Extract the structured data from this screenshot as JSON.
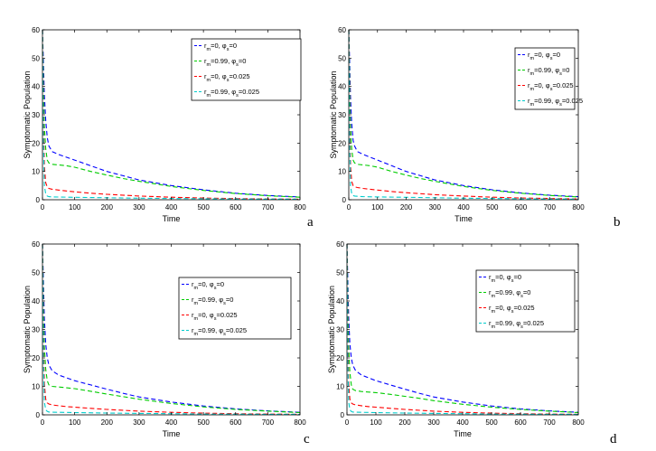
{
  "chart_data": [
    {
      "panel": "a",
      "type": "line",
      "xlabel": "Time",
      "ylabel": "Symptomatic Population",
      "xlim": [
        0,
        800
      ],
      "ylim": [
        0,
        60
      ],
      "xticks": [
        0,
        100,
        200,
        300,
        400,
        500,
        600,
        700,
        800
      ],
      "yticks": [
        0,
        10,
        20,
        30,
        40,
        50,
        60
      ],
      "legend_position": "top-right",
      "series": [
        {
          "name": "r_m=0, φ_s=0",
          "legend": [
            "r",
            "m",
            "=0, φ",
            "s",
            "=0"
          ],
          "color": "#0000ff",
          "x": [
            0,
            3,
            6,
            10,
            15,
            20,
            30,
            50,
            75,
            100,
            150,
            200,
            250,
            300,
            400,
            500,
            600,
            700,
            800
          ],
          "y": [
            60,
            48,
            37,
            28,
            22,
            19,
            17,
            16,
            15,
            14,
            12,
            10,
            8.5,
            7,
            5,
            3.5,
            2.3,
            1.5,
            1
          ]
        },
        {
          "name": "r_m=0.99, φ_s=0",
          "legend": [
            "r",
            "m",
            "=0.99, φ",
            "s",
            "=0"
          ],
          "color": "#00cc00",
          "x": [
            0,
            3,
            6,
            10,
            15,
            20,
            30,
            50,
            75,
            100,
            150,
            200,
            250,
            300,
            400,
            500,
            600,
            700,
            800
          ],
          "y": [
            60,
            40,
            26,
            18,
            14,
            13,
            12.5,
            12.3,
            12,
            11.5,
            10,
            8.7,
            7.5,
            6.5,
            4.7,
            3.3,
            2.2,
            1.4,
            0.9
          ]
        },
        {
          "name": "r_m=0, φ_s=0.025",
          "legend": [
            "r",
            "m",
            "=0, φ",
            "s",
            "=0.025"
          ],
          "color": "#ff0000",
          "x": [
            0,
            3,
            6,
            10,
            15,
            20,
            30,
            50,
            75,
            100,
            150,
            200,
            300,
            400,
            500,
            600,
            700,
            800
          ],
          "y": [
            60,
            30,
            12,
            6,
            4.5,
            4,
            3.7,
            3.4,
            3.1,
            2.8,
            2.3,
            1.9,
            1.3,
            0.9,
            0.6,
            0.4,
            0.3,
            0.2
          ]
        },
        {
          "name": "r_m=0.99, φ_s=0.025",
          "legend": [
            "r",
            "m",
            "=0.99, φ",
            "s",
            "=0.025"
          ],
          "color": "#00cccc",
          "x": [
            0,
            3,
            6,
            10,
            15,
            20,
            30,
            50,
            100,
            200,
            300,
            400,
            500,
            600,
            700,
            800
          ],
          "y": [
            60,
            20,
            5,
            2,
            1.3,
            1.1,
            1,
            0.95,
            0.85,
            0.7,
            0.55,
            0.45,
            0.35,
            0.28,
            0.22,
            0.18
          ]
        }
      ]
    },
    {
      "panel": "b",
      "type": "line",
      "xlabel": "Time",
      "ylabel": "Symptomatic Population",
      "xlim": [
        0,
        800
      ],
      "ylim": [
        0,
        60
      ],
      "xticks": [
        0,
        100,
        200,
        300,
        400,
        500,
        600,
        700,
        800
      ],
      "yticks": [
        0,
        10,
        20,
        30,
        40,
        50,
        60
      ],
      "legend_position": "top-right",
      "series": [
        {
          "name": "r_m=0, φ_s=0",
          "legend": [
            "r",
            "m",
            "=0, φ",
            "s",
            "=0"
          ],
          "color": "#0000ff",
          "x": [
            0,
            3,
            6,
            10,
            15,
            20,
            30,
            50,
            75,
            100,
            150,
            200,
            250,
            300,
            400,
            500,
            600,
            700,
            800
          ],
          "y": [
            60,
            48,
            36,
            27,
            21,
            19,
            17,
            16,
            15,
            14,
            12,
            10,
            8.5,
            7,
            5,
            3.5,
            2.4,
            1.6,
            1.1
          ]
        },
        {
          "name": "r_m=0.99, φ_s=0",
          "legend": [
            "r",
            "m",
            "=0.99, φ",
            "s",
            "=0"
          ],
          "color": "#00cc00",
          "x": [
            0,
            3,
            6,
            10,
            15,
            20,
            30,
            50,
            75,
            100,
            150,
            200,
            250,
            300,
            400,
            500,
            600,
            700,
            800
          ],
          "y": [
            60,
            40,
            26,
            18,
            14,
            13,
            12.5,
            12.3,
            12,
            11.5,
            10,
            8.7,
            7.5,
            6.5,
            4.7,
            3.3,
            2.3,
            1.5,
            1
          ]
        },
        {
          "name": "r_m=0, φ_s=0.025",
          "legend": [
            "r",
            "m",
            "=0, φ",
            "s",
            "=0.025"
          ],
          "color": "#ff0000",
          "x": [
            0,
            3,
            6,
            10,
            15,
            20,
            30,
            50,
            75,
            100,
            150,
            200,
            300,
            400,
            500,
            600,
            700,
            800
          ],
          "y": [
            60,
            30,
            12,
            6.5,
            5,
            4.6,
            4.3,
            4,
            3.7,
            3.4,
            2.9,
            2.5,
            1.8,
            1.3,
            0.9,
            0.6,
            0.45,
            0.3
          ]
        },
        {
          "name": "r_m=0.99, φ_s=0.025",
          "legend": [
            "r",
            "m",
            "=0.99, φ",
            "s",
            "=0.025"
          ],
          "color": "#00cccc",
          "x": [
            0,
            3,
            6,
            10,
            15,
            20,
            30,
            50,
            100,
            200,
            300,
            400,
            500,
            600,
            700,
            800
          ],
          "y": [
            60,
            20,
            5,
            2.2,
            1.5,
            1.3,
            1.2,
            1.1,
            1,
            0.85,
            0.7,
            0.55,
            0.45,
            0.35,
            0.28,
            0.22
          ]
        }
      ]
    },
    {
      "panel": "c",
      "type": "line",
      "xlabel": "Time",
      "ylabel": "Symptomatic Population",
      "xlim": [
        0,
        800
      ],
      "ylim": [
        0,
        60
      ],
      "xticks": [
        0,
        100,
        200,
        300,
        400,
        500,
        600,
        700,
        800
      ],
      "yticks": [
        0,
        10,
        20,
        30,
        40,
        50,
        60
      ],
      "legend_position": "right",
      "series": [
        {
          "name": "r_m=0, φ_s=0",
          "legend": [
            "r",
            "m",
            "=0, φ",
            "s",
            "=0"
          ],
          "color": "#0000ff",
          "x": [
            0,
            3,
            6,
            10,
            15,
            20,
            30,
            50,
            75,
            100,
            150,
            200,
            250,
            300,
            400,
            500,
            600,
            700,
            800
          ],
          "y": [
            60,
            46,
            34,
            25,
            20,
            17.5,
            15.5,
            14,
            13,
            12,
            10.5,
            9,
            7.6,
            6.3,
            4.5,
            3.1,
            2.1,
            1.4,
            0.9
          ]
        },
        {
          "name": "r_m=0.99, φ_s=0",
          "legend": [
            "r",
            "m",
            "=0.99, φ",
            "s",
            "=0"
          ],
          "color": "#00cc00",
          "x": [
            0,
            3,
            6,
            10,
            15,
            20,
            30,
            50,
            75,
            100,
            150,
            200,
            250,
            300,
            400,
            500,
            600,
            700,
            800
          ],
          "y": [
            60,
            38,
            24,
            16,
            12,
            10.5,
            10,
            9.8,
            9.5,
            9.2,
            8.3,
            7.3,
            6.4,
            5.5,
            4,
            2.8,
            1.9,
            1.3,
            0.8
          ]
        },
        {
          "name": "r_m=0, φ_s=0.025",
          "legend": [
            "r",
            "m",
            "=0, φ",
            "s",
            "=0.025"
          ],
          "color": "#ff0000",
          "x": [
            0,
            3,
            6,
            10,
            15,
            20,
            30,
            50,
            75,
            100,
            150,
            200,
            300,
            400,
            500,
            600,
            700,
            800
          ],
          "y": [
            60,
            28,
            11,
            5.5,
            4.2,
            3.8,
            3.5,
            3.2,
            2.9,
            2.7,
            2.3,
            1.9,
            1.3,
            0.9,
            0.6,
            0.4,
            0.3,
            0.2
          ]
        },
        {
          "name": "r_m=0.99, φ_s=0.025",
          "legend": [
            "r",
            "m",
            "=0.99, φ",
            "s",
            "=0.025"
          ],
          "color": "#00cccc",
          "x": [
            0,
            3,
            6,
            10,
            15,
            20,
            30,
            50,
            100,
            200,
            300,
            400,
            500,
            600,
            700,
            800
          ],
          "y": [
            60,
            18,
            4.5,
            1.8,
            1.2,
            1,
            0.95,
            0.9,
            0.8,
            0.65,
            0.5,
            0.4,
            0.3,
            0.25,
            0.2,
            0.15
          ]
        }
      ]
    },
    {
      "panel": "d",
      "type": "line",
      "xlabel": "Time",
      "ylabel": "Symptomatic Population",
      "xlim": [
        0,
        800
      ],
      "ylim": [
        0,
        60
      ],
      "xticks": [
        0,
        100,
        200,
        300,
        400,
        500,
        600,
        700,
        800
      ],
      "yticks": [
        0,
        10,
        20,
        30,
        40,
        50,
        60
      ],
      "legend_position": "right",
      "series": [
        {
          "name": "r_m=0, φ_s=0",
          "legend": [
            "r",
            "m",
            "=0, φ",
            "s",
            "=0"
          ],
          "color": "#0000ff",
          "x": [
            0,
            3,
            6,
            10,
            15,
            20,
            30,
            50,
            75,
            100,
            150,
            200,
            250,
            300,
            400,
            500,
            600,
            700,
            800
          ],
          "y": [
            60,
            46,
            34,
            25,
            20,
            17.5,
            15.5,
            14,
            13,
            12,
            10.5,
            9,
            7.6,
            6.3,
            4.5,
            3.1,
            2.1,
            1.4,
            0.9
          ]
        },
        {
          "name": "r_m=0.99, φ_s=0",
          "legend": [
            "r",
            "m",
            "=0.99, φ",
            "s",
            "=0"
          ],
          "color": "#00cc00",
          "x": [
            0,
            3,
            6,
            10,
            15,
            20,
            30,
            50,
            75,
            100,
            150,
            200,
            250,
            300,
            400,
            500,
            600,
            700,
            800
          ],
          "y": [
            60,
            38,
            24,
            15,
            10.5,
            9,
            8.5,
            8.2,
            8,
            7.8,
            7.2,
            6.5,
            5.8,
            5,
            3.7,
            2.7,
            1.9,
            1.3,
            0.8
          ]
        },
        {
          "name": "r_m=0, φ_s=0.025",
          "legend": [
            "r",
            "m",
            "=0, φ",
            "s",
            "=0.025"
          ],
          "color": "#ff0000",
          "x": [
            0,
            3,
            6,
            10,
            15,
            20,
            30,
            50,
            75,
            100,
            150,
            200,
            300,
            400,
            500,
            600,
            700,
            800
          ],
          "y": [
            60,
            28,
            11,
            5.5,
            4.2,
            3.8,
            3.5,
            3.2,
            2.9,
            2.7,
            2.3,
            1.9,
            1.3,
            0.9,
            0.6,
            0.4,
            0.3,
            0.2
          ]
        },
        {
          "name": "r_m=0.99, φ_s=0.025",
          "legend": [
            "r",
            "m",
            "=0.99, φ",
            "s",
            "=0.025"
          ],
          "color": "#00cccc",
          "x": [
            0,
            3,
            6,
            10,
            15,
            20,
            30,
            50,
            100,
            200,
            300,
            400,
            500,
            600,
            700,
            800
          ],
          "y": [
            60,
            18,
            4.5,
            1.8,
            1.2,
            1,
            0.95,
            0.9,
            0.8,
            0.65,
            0.5,
            0.4,
            0.3,
            0.25,
            0.2,
            0.15
          ]
        }
      ]
    }
  ]
}
